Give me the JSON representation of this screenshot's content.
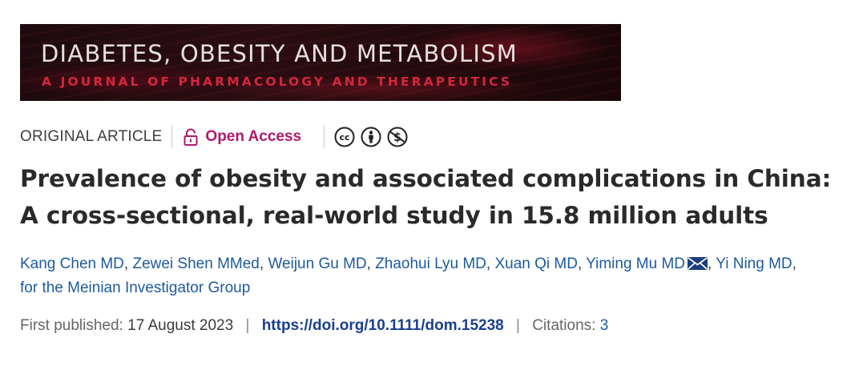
{
  "journal": {
    "title": "DIABETES, OBESITY AND METABOLISM",
    "subtitle": "A JOURNAL OF PHARMACOLOGY AND THERAPEUTICS"
  },
  "meta": {
    "article_type": "ORIGINAL ARTICLE",
    "open_access_label": "Open Access",
    "license_icons": [
      "cc-icon",
      "attribution-icon",
      "noncommercial-icon"
    ]
  },
  "article": {
    "title": "Prevalence of obesity and associated complications in China: A cross-sectional, real-world study in 15.8 million adults"
  },
  "authors": [
    {
      "name": "Kang Chen MD"
    },
    {
      "name": "Zewei Shen MMed"
    },
    {
      "name": "Weijun Gu MD"
    },
    {
      "name": "Zhaohui Lyu MD"
    },
    {
      "name": "Xuan Qi MD"
    },
    {
      "name": "Yiming Mu MD"
    },
    {
      "name": "Yi Ning MD"
    }
  ],
  "author_group": "for the Meinian Investigator Group",
  "publication": {
    "first_published_label": "First published:",
    "date": "17 August 2023",
    "doi": "https://doi.org/10.1111/dom.15238",
    "citations_label": "Citations:",
    "citations_count": "3"
  },
  "colors": {
    "open_access": "#b1186a",
    "link": "#1c5a9e",
    "doi": "#1a3f8f",
    "banner_accent": "#d4263e"
  }
}
